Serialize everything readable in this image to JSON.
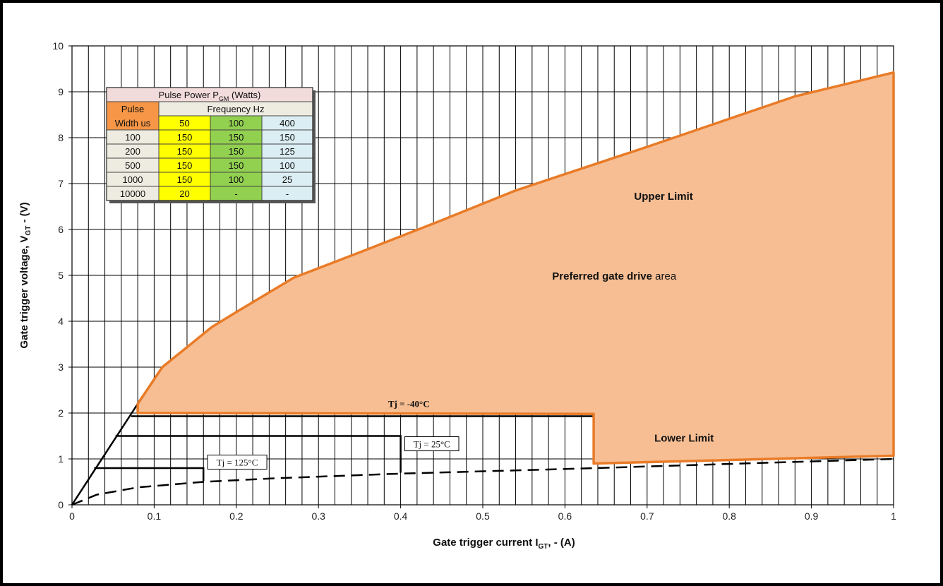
{
  "chart_data": {
    "type": "area",
    "xlabel": "Gate trigger current",
    "xlabel_sym": "I",
    "xlabel_sub": "GT",
    "xlabel_tail": ", - (A)",
    "ylabel": "Gate trigger voltage, ",
    "ylabel_sym": "V",
    "ylabel_sub": "GT",
    "ylabel_tail": " - (V)",
    "xlim": [
      0,
      1
    ],
    "ylim": [
      0,
      10
    ],
    "x_ticks": [
      "0",
      "0.1",
      "0.2",
      "0.3",
      "0.4",
      "0.5",
      "0.6",
      "0.7",
      "0.8",
      "0.9",
      "1"
    ],
    "y_ticks": [
      "0",
      "1",
      "2",
      "3",
      "4",
      "5",
      "6",
      "7",
      "8",
      "9",
      "10"
    ],
    "x_minor_step": 0.02,
    "grid": true,
    "preferred_area": {
      "upper_limit": [
        [
          0.08,
          2.2
        ],
        [
          0.11,
          3.0
        ],
        [
          0.17,
          3.87
        ],
        [
          0.2,
          4.2
        ],
        [
          0.27,
          4.95
        ],
        [
          0.35,
          5.5
        ],
        [
          0.45,
          6.2
        ],
        [
          0.54,
          6.85
        ],
        [
          0.7,
          7.8
        ],
        [
          0.88,
          8.9
        ],
        [
          1.0,
          9.42
        ]
      ],
      "lower_limit": [
        [
          1.0,
          1.07
        ],
        [
          0.635,
          0.9
        ],
        [
          0.635,
          1.98
        ],
        [
          0.08,
          2.0
        ]
      ],
      "fill_color": "#F7BE93",
      "edge_color": "#E97B27"
    },
    "thresholds": [
      {
        "label": "Tj = -40°C",
        "points": [
          [
            0.072,
            1.93
          ],
          [
            0.635,
            1.93
          ]
        ]
      },
      {
        "label": "Tj = 25°C",
        "points": [
          [
            0.053,
            1.5
          ],
          [
            0.4,
            1.5
          ],
          [
            0.4,
            0.7
          ]
        ]
      },
      {
        "label": "Tj = 125°C",
        "points": [
          [
            0.027,
            0.8
          ],
          [
            0.16,
            0.8
          ],
          [
            0.16,
            0.52
          ]
        ]
      }
    ],
    "load_line": [
      [
        0,
        0
      ],
      [
        0.08,
        2.2
      ]
    ],
    "dashed_curve": [
      [
        0,
        0
      ],
      [
        0.03,
        0.22
      ],
      [
        0.08,
        0.38
      ],
      [
        0.16,
        0.5
      ],
      [
        0.25,
        0.58
      ],
      [
        0.4,
        0.68
      ],
      [
        0.6,
        0.78
      ],
      [
        0.8,
        0.89
      ],
      [
        1.0,
        1.0
      ]
    ],
    "annotations": {
      "upper_limit": "Upper Limit",
      "lower_limit": "Lower Limit",
      "preferred_bold": "Preferred gate drive",
      "preferred_tail": " area"
    },
    "colors": {
      "area_fill": "#F7BE93",
      "area_edge": "#E97B27",
      "grid": "#000000",
      "line": "#000000"
    }
  },
  "pulse_table": {
    "title": "Pulse Power P",
    "title_sub": "GM",
    "title_tail": " (Watts)",
    "header_left_top": "Pulse",
    "header_left_bottom": "Width us",
    "header_freq": "Frequency Hz",
    "freq_columns": [
      "50",
      "100",
      "400"
    ],
    "rows": [
      {
        "width": "100",
        "values": [
          "150",
          "150",
          "150"
        ]
      },
      {
        "width": "200",
        "values": [
          "150",
          "150",
          "125"
        ]
      },
      {
        "width": "500",
        "values": [
          "150",
          "150",
          "100"
        ]
      },
      {
        "width": "1000",
        "values": [
          "150",
          "100",
          "25"
        ]
      },
      {
        "width": "10000",
        "values": [
          "20",
          "-",
          "-"
        ]
      }
    ],
    "colors": {
      "title_bg": "#F2DCDB",
      "pulse_header_bg": "#F79646",
      "freq_header_bg": "#EEECE1",
      "width_col_bg": "#EEECE1",
      "col50_bg": "#FFFF00",
      "col100_bg": "#92D050",
      "col400_bg": "#DBEEF4"
    }
  }
}
